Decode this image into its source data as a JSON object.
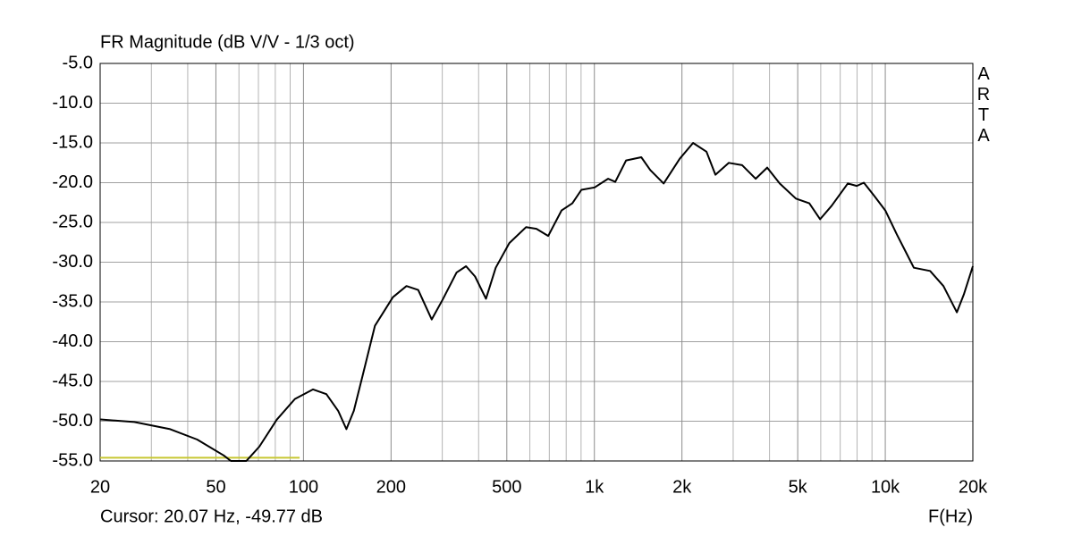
{
  "chart_data": {
    "type": "line",
    "title": "FR Magnitude (dB V/V - 1/3 oct)",
    "side_label": "ARTA",
    "cursor": "Cursor: 20.07 Hz, -49.77 dB",
    "x_label": "F(Hz)",
    "log_x": true,
    "grid": true,
    "xlim": [
      20,
      20000
    ],
    "ylim": [
      -55,
      -5
    ],
    "xticks": [
      20,
      50,
      100,
      200,
      500,
      {
        "value": 1000,
        "label": "1k"
      },
      {
        "value": 2000,
        "label": "2k"
      },
      {
        "value": 5000,
        "label": "5k"
      },
      {
        "value": 10000,
        "label": "10k"
      },
      {
        "value": 20000,
        "label": "20k"
      }
    ],
    "x_minor_grid": [
      30,
      40,
      60,
      70,
      80,
      90,
      300,
      400,
      600,
      700,
      800,
      900,
      3000,
      4000,
      6000,
      7000,
      8000,
      9000
    ],
    "yticks": [
      {
        "value": -5,
        "label": "-5.0"
      },
      {
        "value": -10,
        "label": "-10.0"
      },
      {
        "value": -15,
        "label": "-15.0"
      },
      {
        "value": -20,
        "label": "-20.0"
      },
      {
        "value": -25,
        "label": "-25.0"
      },
      {
        "value": -30,
        "label": "-30.0"
      },
      {
        "value": -35,
        "label": "-35.0"
      },
      {
        "value": -40,
        "label": "-40.0"
      },
      {
        "value": -45,
        "label": "-45.0"
      },
      {
        "value": -50,
        "label": "-50.0"
      },
      {
        "value": -55,
        "label": "-55.0"
      }
    ],
    "series": [
      {
        "color": "#000000",
        "x": [
          20.07,
          26.2,
          34.8,
          43.1,
          53.2,
          56.3,
          63.6,
          70.5,
          81,
          93.4,
          107.9,
          119.9,
          131.6,
          140.5,
          149,
          159.9,
          176,
          203,
          226,
          248,
          276,
          301,
          336,
          362,
          389,
          424,
          458,
          510,
          582,
          632,
          694,
          771,
          840,
          902,
          1002,
          1114,
          1180,
          1285,
          1450,
          1556,
          1730,
          1964,
          2184,
          2428,
          2606,
          2898,
          3222,
          3584,
          3928,
          4336,
          4930,
          5480,
          5970,
          6540,
          7430,
          7980,
          8440,
          9180,
          10000,
          10960,
          12540,
          14260,
          15850,
          17620,
          18650,
          20000
        ],
        "values": [
          -49.77,
          -50.1,
          -51.0,
          -52.3,
          -54.3,
          -55,
          -55,
          -53.2,
          -49.8,
          -47.2,
          -46.0,
          -46.6,
          -48.7,
          -51.0,
          -48.7,
          -44.2,
          -38.0,
          -34.4,
          -33.0,
          -33.5,
          -37.2,
          -34.7,
          -31.3,
          -30.5,
          -31.8,
          -34.6,
          -30.7,
          -27.6,
          -25.6,
          -25.8,
          -26.7,
          -23.5,
          -22.6,
          -20.9,
          -20.6,
          -19.5,
          -19.9,
          -17.2,
          -16.8,
          -18.4,
          -20.1,
          -17.0,
          -15.0,
          -16.1,
          -19.0,
          -17.5,
          -17.8,
          -19.5,
          -18.1,
          -20.1,
          -22.0,
          -22.6,
          -24.6,
          -22.9,
          -20.1,
          -20.4,
          -20.0,
          -21.7,
          -23.5,
          -26.5,
          -30.7,
          -31.1,
          -33.0,
          -36.3,
          -34.0,
          -30.5
        ]
      },
      {
        "color": "#c8c832",
        "x": [
          20,
          97
        ],
        "values": [
          -54.6,
          -54.6
        ]
      }
    ]
  }
}
